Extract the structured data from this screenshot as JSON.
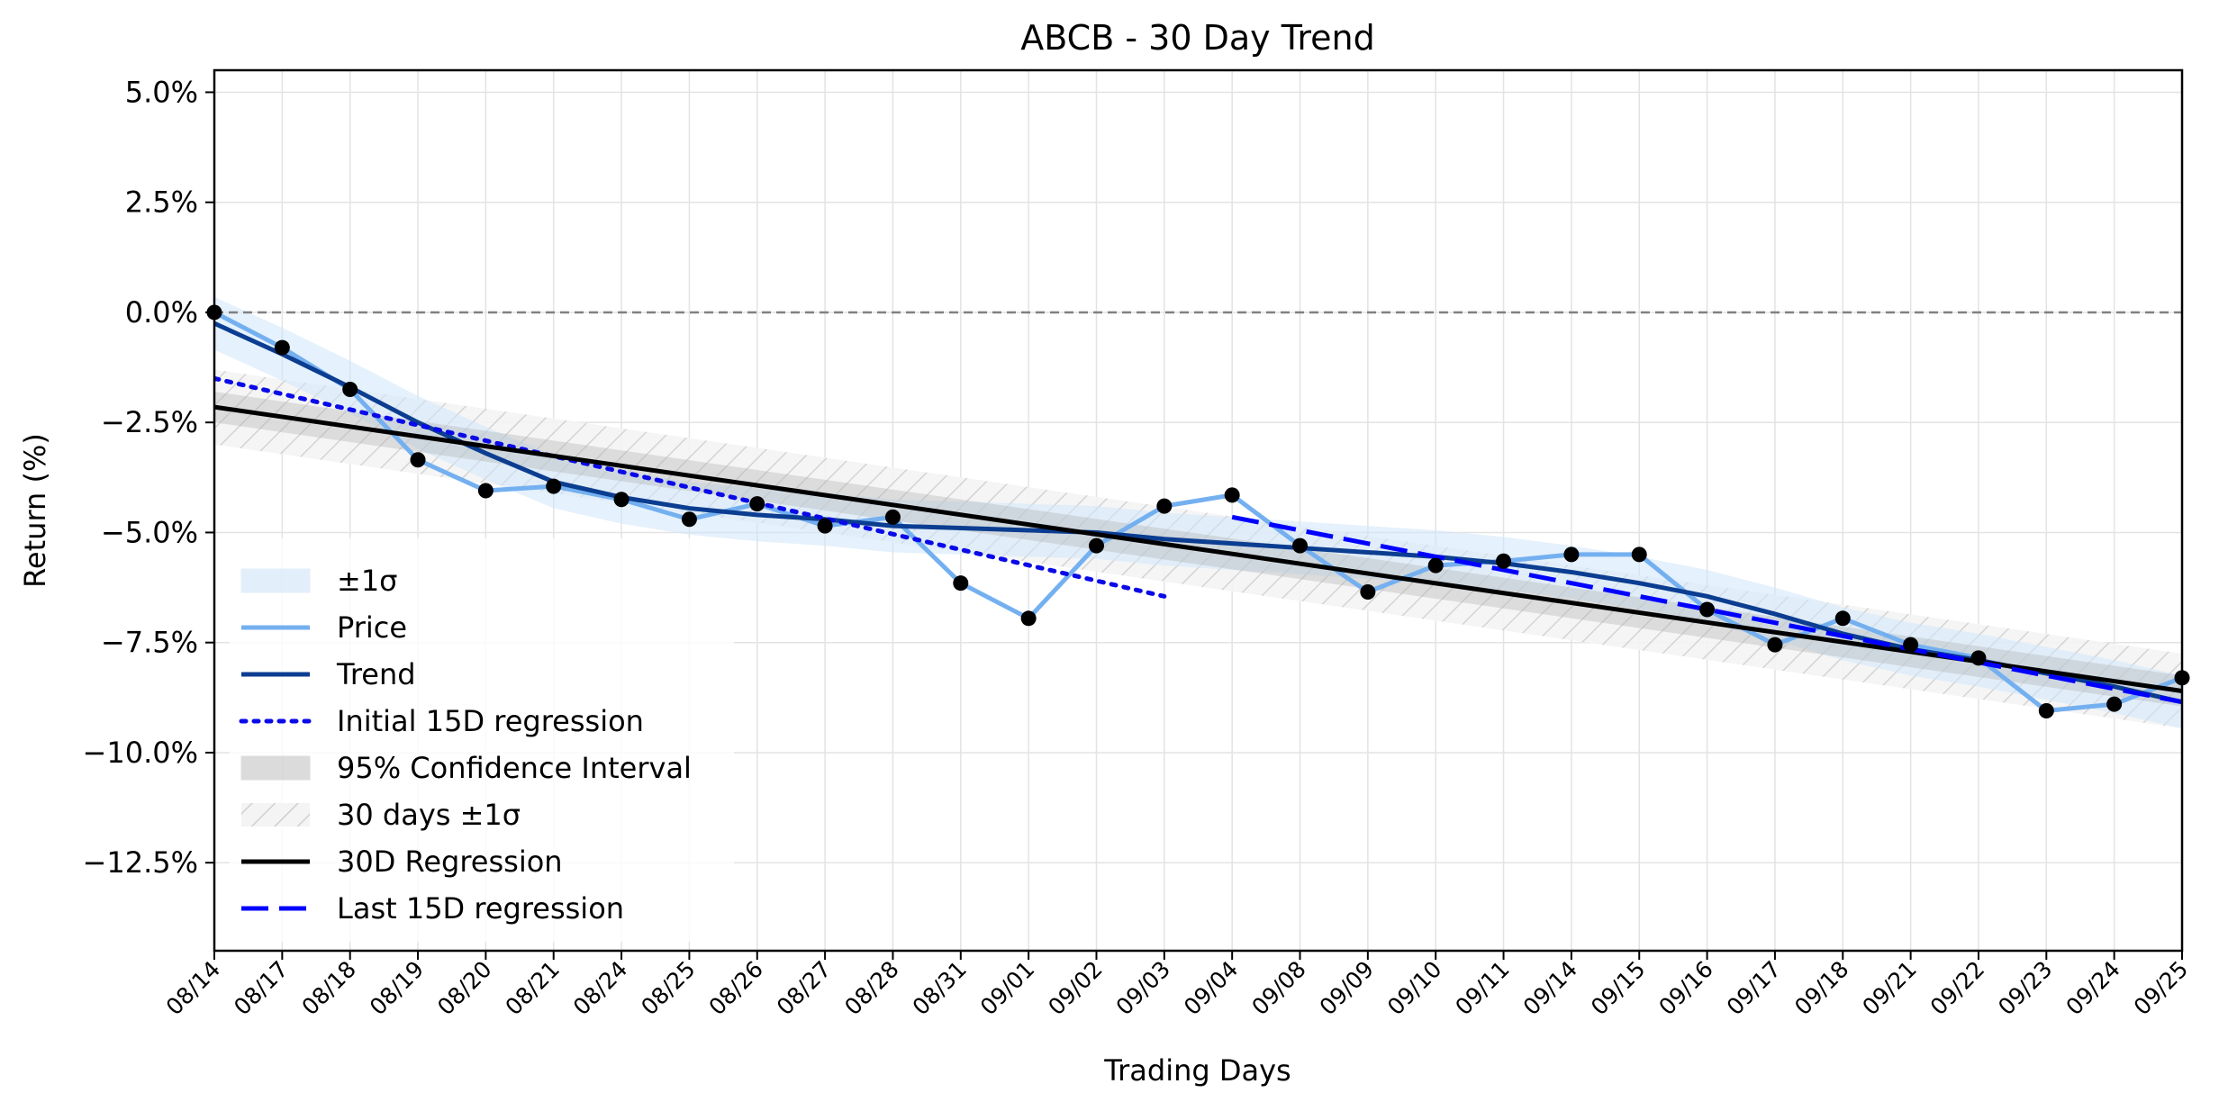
{
  "chart_data": {
    "type": "line",
    "title": "ABCB - 30 Day Trend",
    "xlabel": "Trading Days",
    "ylabel": "Return (%)",
    "categories": [
      "08/14",
      "08/17",
      "08/18",
      "08/19",
      "08/20",
      "08/21",
      "08/24",
      "08/25",
      "08/26",
      "08/27",
      "08/28",
      "08/31",
      "09/01",
      "09/02",
      "09/03",
      "09/04",
      "09/08",
      "09/09",
      "09/10",
      "09/11",
      "09/14",
      "09/15",
      "09/16",
      "09/17",
      "09/18",
      "09/21",
      "09/22",
      "09/23",
      "09/24",
      "09/25"
    ],
    "ylim": [
      -14.5,
      5.5
    ],
    "yticks": [
      5.0,
      2.5,
      0.0,
      -2.5,
      -5.0,
      -7.5,
      -10.0,
      -12.5
    ],
    "ytick_labels": [
      "5.0%",
      "2.5%",
      "0.0%",
      "−2.5%",
      "−5.0%",
      "−7.5%",
      "−10.0%",
      "−12.5%"
    ],
    "grid": true,
    "reference_line": 0.0,
    "legend_position": "lower-left",
    "series": [
      {
        "name": "Price",
        "style": "line-markers",
        "color": "#74b0f0",
        "values": [
          0.0,
          -0.8,
          -1.75,
          -3.35,
          -4.05,
          -3.95,
          -4.25,
          -4.7,
          -4.35,
          -4.85,
          -4.65,
          -6.15,
          -6.95,
          -5.3,
          -4.4,
          -4.15,
          -5.3,
          -6.35,
          -5.75,
          -5.65,
          -5.5,
          -5.5,
          -6.75,
          -7.55,
          -6.95,
          -7.55,
          -7.85,
          -9.05,
          -8.9,
          -8.3
        ]
      },
      {
        "name": "Trend",
        "style": "line",
        "color": "#0b3d91",
        "values": [
          -0.25,
          -0.95,
          -1.7,
          -2.5,
          -3.2,
          -3.85,
          -4.2,
          -4.45,
          -4.6,
          -4.7,
          -4.85,
          -4.9,
          -4.95,
          -5.0,
          -5.15,
          -5.25,
          -5.35,
          -5.45,
          -5.55,
          -5.7,
          -5.9,
          -6.15,
          -6.45,
          -6.85,
          -7.3,
          -7.65,
          -7.9,
          -8.2,
          -8.5,
          -8.85
        ]
      },
      {
        "name": "±1σ",
        "style": "band",
        "color": "#cfe5fa",
        "half_width": 0.6
      },
      {
        "name": "Initial 15D regression",
        "style": "dotted",
        "color": "#0a0ae8",
        "x_range": [
          0,
          14
        ],
        "y_range": [
          -1.5,
          -6.45
        ]
      },
      {
        "name": "95% Confidence Interval",
        "style": "band",
        "color": "#b0b0b0",
        "half_width": 0.35
      },
      {
        "name": "30 days ±1σ",
        "style": "hatched-band",
        "color": "#c0c0c0",
        "half_width": 0.85
      },
      {
        "name": "30D Regression",
        "style": "line",
        "color": "#000000",
        "x_range": [
          0,
          29
        ],
        "y_range": [
          -2.15,
          -8.6
        ]
      },
      {
        "name": "Last 15D regression",
        "style": "dashed",
        "color": "#0000ff",
        "x_range": [
          15,
          29
        ],
        "y_range": [
          -4.65,
          -8.85
        ]
      }
    ]
  }
}
